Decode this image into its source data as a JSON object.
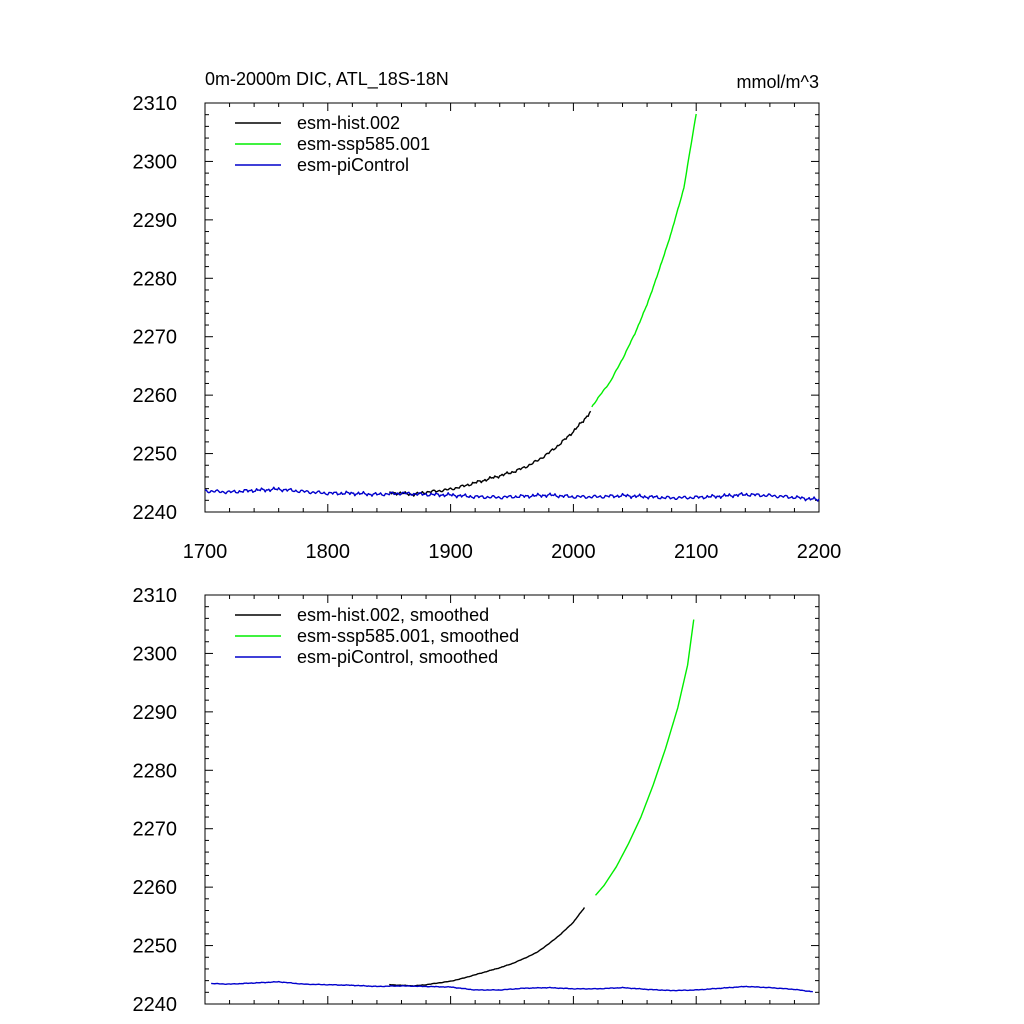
{
  "chart_data": [
    {
      "type": "line",
      "title": "0m-2000m DIC, ATL_18S-18N",
      "units": "mmol/m^3",
      "xlim": [
        1700,
        2200
      ],
      "ylim": [
        2240,
        2310
      ],
      "xticks": [
        1700,
        1800,
        1900,
        2000,
        2100,
        2200
      ],
      "yticks": [
        2240,
        2250,
        2260,
        2270,
        2280,
        2290,
        2300,
        2310
      ],
      "show_xtick_labels": true,
      "legend": "top-left",
      "series": [
        {
          "name": "esm-hist.002",
          "color": "#000000",
          "noise": 0.25,
          "points": [
            [
              1850,
              2243.3
            ],
            [
              1860,
              2243.2
            ],
            [
              1870,
              2243.0
            ],
            [
              1880,
              2243.4
            ],
            [
              1890,
              2243.6
            ],
            [
              1900,
              2243.9
            ],
            [
              1910,
              2244.4
            ],
            [
              1920,
              2245.0
            ],
            [
              1930,
              2245.6
            ],
            [
              1940,
              2246.2
            ],
            [
              1950,
              2246.8
            ],
            [
              1960,
              2247.6
            ],
            [
              1970,
              2248.7
            ],
            [
              1980,
              2250.1
            ],
            [
              1990,
              2251.8
            ],
            [
              2000,
              2253.8
            ],
            [
              2008,
              2255.6
            ],
            [
              2014,
              2257.2
            ]
          ]
        },
        {
          "name": "esm-ssp585.001",
          "color": "#00ee00",
          "noise": 0.1,
          "points": [
            [
              2015,
              2258.0
            ],
            [
              2020,
              2259.5
            ],
            [
              2030,
              2262.3
            ],
            [
              2040,
              2266.2
            ],
            [
              2050,
              2270.5
            ],
            [
              2060,
              2275.5
            ],
            [
              2070,
              2281.5
            ],
            [
              2080,
              2288.0
            ],
            [
              2090,
              2295.5
            ],
            [
              2100,
              2308.2
            ]
          ]
        },
        {
          "name": "esm-piControl",
          "color": "#0000cc",
          "noise": 0.3,
          "points": [
            [
              1700,
              2243.6
            ],
            [
              1720,
              2243.4
            ],
            [
              1740,
              2243.7
            ],
            [
              1760,
              2243.9
            ],
            [
              1780,
              2243.5
            ],
            [
              1800,
              2243.2
            ],
            [
              1820,
              2243.2
            ],
            [
              1840,
              2243.0
            ],
            [
              1860,
              2243.2
            ],
            [
              1880,
              2243.0
            ],
            [
              1900,
              2242.9
            ],
            [
              1920,
              2242.6
            ],
            [
              1940,
              2242.5
            ],
            [
              1960,
              2242.7
            ],
            [
              1980,
              2242.9
            ],
            [
              2000,
              2242.6
            ],
            [
              2020,
              2242.6
            ],
            [
              2040,
              2242.8
            ],
            [
              2060,
              2242.6
            ],
            [
              2080,
              2242.4
            ],
            [
              2100,
              2242.5
            ],
            [
              2120,
              2242.7
            ],
            [
              2140,
              2243.0
            ],
            [
              2160,
              2242.8
            ],
            [
              2180,
              2242.5
            ],
            [
              2200,
              2242.1
            ]
          ]
        }
      ]
    },
    {
      "type": "line",
      "title": "",
      "units": "",
      "xlim": [
        1700,
        2200
      ],
      "ylim": [
        2240,
        2310
      ],
      "xticks": [
        1700,
        1800,
        1900,
        2000,
        2100,
        2200
      ],
      "yticks": [
        2240,
        2250,
        2260,
        2270,
        2280,
        2290,
        2300,
        2310
      ],
      "show_xtick_labels": false,
      "legend": "top-left",
      "series": [
        {
          "name": "esm-hist.002, smoothed",
          "color": "#000000",
          "noise": 0.04,
          "points": [
            [
              1850,
              2243.3
            ],
            [
              1860,
              2243.2
            ],
            [
              1870,
              2243.1
            ],
            [
              1880,
              2243.3
            ],
            [
              1890,
              2243.6
            ],
            [
              1900,
              2243.9
            ],
            [
              1910,
              2244.4
            ],
            [
              1920,
              2245.0
            ],
            [
              1930,
              2245.6
            ],
            [
              1940,
              2246.2
            ],
            [
              1950,
              2246.9
            ],
            [
              1960,
              2247.8
            ],
            [
              1970,
              2248.8
            ],
            [
              1980,
              2250.3
            ],
            [
              1990,
              2252.0
            ],
            [
              2000,
              2254.0
            ],
            [
              2009,
              2256.5
            ]
          ]
        },
        {
          "name": "esm-ssp585.001, smoothed",
          "color": "#00ee00",
          "noise": 0.0,
          "points": [
            [
              2018,
              2258.6
            ],
            [
              2025,
              2260.3
            ],
            [
              2035,
              2263.5
            ],
            [
              2045,
              2267.5
            ],
            [
              2055,
              2272.0
            ],
            [
              2065,
              2277.5
            ],
            [
              2075,
              2283.7
            ],
            [
              2085,
              2290.7
            ],
            [
              2093,
              2298.0
            ],
            [
              2098,
              2305.8
            ]
          ]
        },
        {
          "name": "esm-piControl, smoothed",
          "color": "#0000cc",
          "noise": 0.05,
          "points": [
            [
              1705,
              2243.5
            ],
            [
              1720,
              2243.4
            ],
            [
              1740,
              2243.6
            ],
            [
              1760,
              2243.8
            ],
            [
              1780,
              2243.4
            ],
            [
              1800,
              2243.3
            ],
            [
              1820,
              2243.2
            ],
            [
              1840,
              2243.0
            ],
            [
              1860,
              2243.1
            ],
            [
              1880,
              2243.0
            ],
            [
              1900,
              2242.9
            ],
            [
              1920,
              2242.4
            ],
            [
              1940,
              2242.4
            ],
            [
              1960,
              2242.7
            ],
            [
              1980,
              2242.8
            ],
            [
              2000,
              2242.6
            ],
            [
              2020,
              2242.6
            ],
            [
              2040,
              2242.8
            ],
            [
              2060,
              2242.5
            ],
            [
              2080,
              2242.3
            ],
            [
              2100,
              2242.4
            ],
            [
              2120,
              2242.7
            ],
            [
              2140,
              2243.0
            ],
            [
              2160,
              2242.8
            ],
            [
              2180,
              2242.5
            ],
            [
              2195,
              2242.1
            ]
          ]
        }
      ]
    }
  ]
}
